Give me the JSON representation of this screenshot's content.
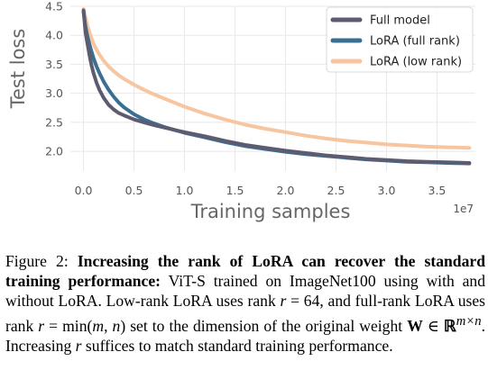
{
  "figure": {
    "chart_data": {
      "type": "line",
      "xlabel": "Training samples",
      "ylabel": "Test loss",
      "x_scale_label": "1e7",
      "xlim": [
        -0.13,
        3.88
      ],
      "ylim": [
        1.66,
        4.5
      ],
      "xticks": [
        "0.0",
        "0.5",
        "1.0",
        "1.5",
        "2.0",
        "2.5",
        "3.0",
        "3.5"
      ],
      "yticks": [
        "2.0",
        "2.5",
        "3.0",
        "3.5",
        "4.0",
        "4.5"
      ],
      "grid": true,
      "legend_position": "top-right",
      "series": [
        {
          "name": "Full model",
          "color": "#5d5b70",
          "x": [
            0.0,
            0.02,
            0.04,
            0.06,
            0.08,
            0.1,
            0.13,
            0.16,
            0.2,
            0.25,
            0.3,
            0.35,
            0.4,
            0.5,
            0.6,
            0.7,
            0.8,
            0.9,
            1.0,
            1.2,
            1.4,
            1.6,
            1.8,
            2.0,
            2.2,
            2.4,
            2.6,
            2.8,
            3.0,
            3.2,
            3.4,
            3.6,
            3.82
          ],
          "y": [
            4.43,
            4.05,
            3.85,
            3.65,
            3.48,
            3.34,
            3.18,
            3.05,
            2.92,
            2.8,
            2.72,
            2.66,
            2.62,
            2.55,
            2.5,
            2.45,
            2.41,
            2.37,
            2.33,
            2.26,
            2.18,
            2.11,
            2.06,
            2.01,
            1.97,
            1.93,
            1.9,
            1.87,
            1.85,
            1.83,
            1.82,
            1.81,
            1.8
          ]
        },
        {
          "name": "LoRA (full rank)",
          "color": "#3a6f91",
          "x": [
            0.0,
            0.02,
            0.04,
            0.06,
            0.08,
            0.1,
            0.13,
            0.16,
            0.2,
            0.25,
            0.3,
            0.35,
            0.4,
            0.5,
            0.6,
            0.7,
            0.8,
            0.9,
            1.0,
            1.2,
            1.4,
            1.6,
            1.8,
            2.0,
            2.2,
            2.4,
            2.6,
            2.8,
            3.0,
            3.2,
            3.4,
            3.6,
            3.82
          ],
          "y": [
            4.4,
            4.15,
            3.98,
            3.84,
            3.72,
            3.6,
            3.46,
            3.34,
            3.2,
            3.06,
            2.94,
            2.84,
            2.76,
            2.64,
            2.55,
            2.48,
            2.42,
            2.37,
            2.32,
            2.24,
            2.16,
            2.09,
            2.04,
            1.99,
            1.95,
            1.92,
            1.89,
            1.86,
            1.84,
            1.82,
            1.81,
            1.8,
            1.79
          ]
        },
        {
          "name": "LoRA (low rank)",
          "color": "#f7c59f",
          "x": [
            0.0,
            0.02,
            0.04,
            0.06,
            0.08,
            0.1,
            0.13,
            0.16,
            0.2,
            0.25,
            0.3,
            0.35,
            0.4,
            0.5,
            0.6,
            0.7,
            0.8,
            0.9,
            1.0,
            1.2,
            1.4,
            1.6,
            1.8,
            2.0,
            2.2,
            2.4,
            2.6,
            2.8,
            3.0,
            3.2,
            3.4,
            3.6,
            3.82
          ],
          "y": [
            4.45,
            4.3,
            4.17,
            4.05,
            3.95,
            3.85,
            3.75,
            3.66,
            3.56,
            3.46,
            3.38,
            3.31,
            3.25,
            3.15,
            3.06,
            2.98,
            2.91,
            2.84,
            2.77,
            2.65,
            2.55,
            2.46,
            2.39,
            2.33,
            2.27,
            2.22,
            2.18,
            2.15,
            2.12,
            2.1,
            2.08,
            2.07,
            2.06
          ]
        }
      ]
    }
  },
  "caption": {
    "label": "Figure 2:",
    "bold_text": "Increasing the rank of LoRA can recover the standard training performance:",
    "body_1": "ViT-S trained on ImageNet100 using with and without LoRA. Low-rank LoRA uses rank",
    "math_r": "r",
    "eq_64": " = 64, and full-rank LoRA uses rank ",
    "eq_min": " = min(",
    "math_m": "m",
    "comma": ", ",
    "math_n": "n",
    "body_2": ") set to the dimension of the original weight ",
    "bold_W": "W",
    "in_R": " ∈ ",
    "bb_R": "ℝ",
    "sup": "m×n",
    "body_3": ". Increasing ",
    "body_4": " suffices to match standard training performance."
  }
}
